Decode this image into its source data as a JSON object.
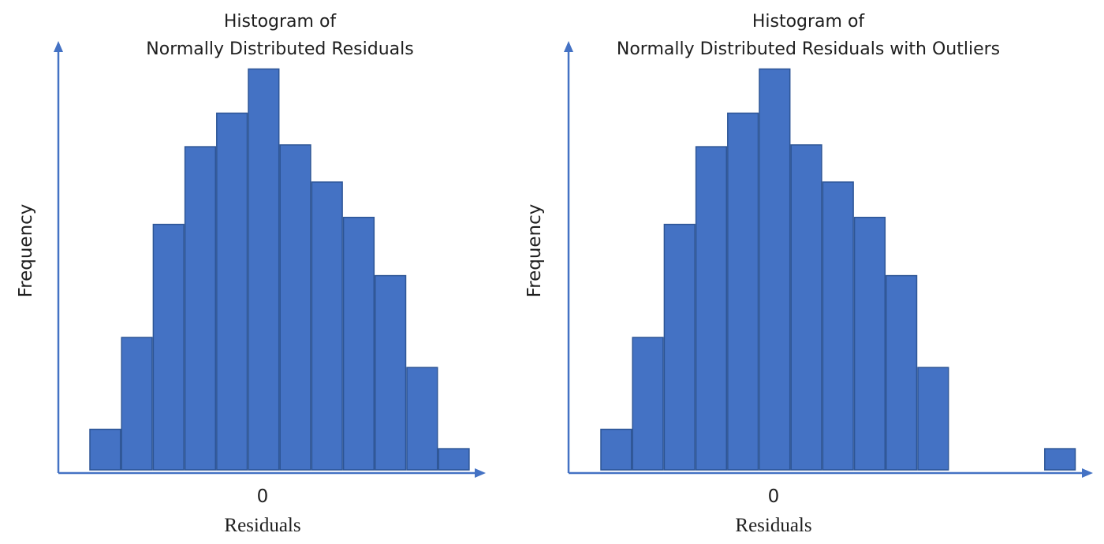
{
  "colors": {
    "bar_fill": "#4472c4",
    "bar_stroke": "#2d5596",
    "axis": "#4472c4"
  },
  "chart_data": [
    {
      "type": "bar",
      "title_lines": [
        "Histogram of",
        "Normally Distributed Residuals"
      ],
      "xlabel": "Residuals",
      "ylabel": "Frequency",
      "x_tick": "0",
      "grid": false,
      "bins": [
        -5,
        -4,
        -3,
        -2,
        -1,
        0,
        1,
        2,
        3,
        4,
        5,
        6
      ],
      "values": [
        1.15,
        3.75,
        6.95,
        9.15,
        10.1,
        11.35,
        9.2,
        8.15,
        7.15,
        5.5,
        2.9,
        0.6
      ],
      "ylim": [
        0,
        12.5
      ]
    },
    {
      "type": "bar",
      "title_lines": [
        "Histogram of",
        "Normally Distributed Residuals with Outliers"
      ],
      "xlabel": "Residuals",
      "ylabel": "Frequency",
      "x_tick": "0",
      "grid": false,
      "bins": [
        -5,
        -4,
        -3,
        -2,
        -1,
        0,
        1,
        2,
        3,
        4,
        5,
        9
      ],
      "values": [
        1.15,
        3.75,
        6.95,
        9.15,
        10.1,
        11.35,
        9.2,
        8.15,
        7.15,
        5.5,
        2.9,
        0.6
      ],
      "ylim": [
        0,
        12.5
      ]
    }
  ]
}
